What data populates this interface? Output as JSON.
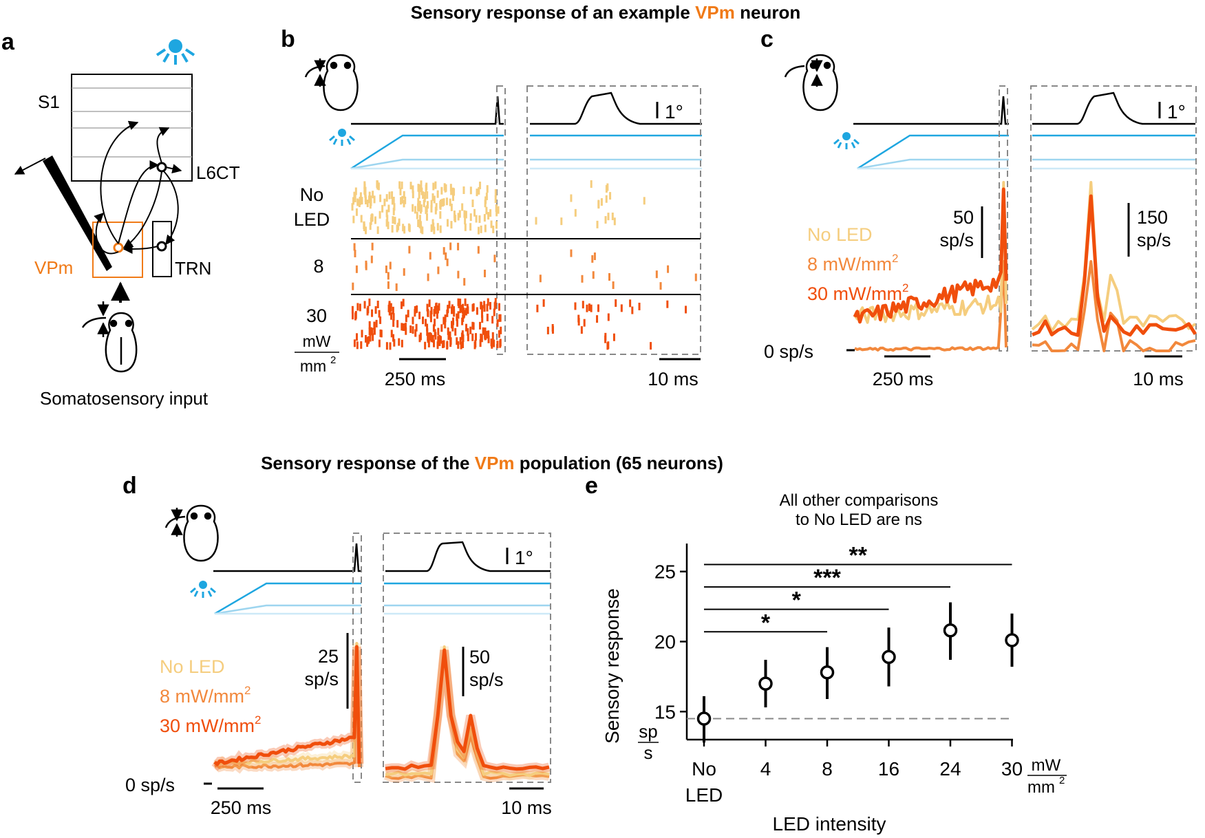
{
  "colors": {
    "noled": "#f5cd7e",
    "mid": "#f2883c",
    "high": "#f04e0c",
    "vpm": "#f07a17",
    "blue": "#1ea6e0",
    "lightblue": "#9dd5ef",
    "faintblue": "#cde9f7",
    "grey": "#888888"
  },
  "titles": {
    "top_prefix": "Sensory response of an example ",
    "top_vpm": "VPm",
    "top_suffix": " neuron",
    "mid_prefix": "Sensory response of the ",
    "mid_vpm": "VPm",
    "mid_suffix": "  population (65 neurons)"
  },
  "panel_labels": {
    "a": "a",
    "b": "b",
    "c": "c",
    "d": "d",
    "e": "e"
  },
  "panel_a": {
    "s1": "S1",
    "l6ct": "L6CT",
    "vpm": "VPm",
    "trn": "TRN",
    "caption": "Somatosensory input"
  },
  "panel_b": {
    "rows": [
      {
        "label_line1": "No",
        "label_line2": "LED"
      },
      {
        "label_line1": "8",
        "label_line2": ""
      },
      {
        "label_line1": "30",
        "label_line2": "mW"
      }
    ],
    "unit_den": "mm",
    "unit_sup": "2",
    "scale_slow": "250 ms",
    "scale_fast": "10 ms",
    "deflection": "1°"
  },
  "panel_c": {
    "legend": [
      "No LED",
      "8 mW/mm",
      "30 mW/mm"
    ],
    "legend_sup": "2",
    "scale_rate_slow_value": "50",
    "scale_rate_slow_unit": "sp/s",
    "scale_rate_fast_value": "150",
    "scale_rate_fast_unit": "sp/s",
    "zero": "0 sp/s",
    "scale_slow": "250 ms",
    "scale_fast": "10 ms",
    "deflection": "1°"
  },
  "panel_d": {
    "legend": [
      "No LED",
      "8 mW/mm",
      "30 mW/mm"
    ],
    "legend_sup": "2",
    "scale_rate_slow_value": "25",
    "scale_rate_slow_unit": "sp/s",
    "scale_rate_fast_value": "50",
    "scale_rate_fast_unit": "sp/s",
    "zero": "0 sp/s",
    "scale_slow": "250 ms",
    "scale_fast": "10 ms",
    "deflection": "1°"
  },
  "chart_data": {
    "type": "scatter",
    "note_line1": "All other comparisons",
    "note_line2": "to No LED are ns",
    "ylabel": "Sensory response",
    "yunit_num": "sp",
    "yunit_den": "s",
    "xlabel": "LED intensity",
    "xunit_num": "mW",
    "xunit_den": "mm",
    "xunit_sup": "2",
    "categories": [
      "No\nLED",
      "4",
      "8",
      "16",
      "24",
      "30"
    ],
    "category_line1": [
      "No",
      "4",
      "8",
      "16",
      "24",
      "30"
    ],
    "category_line2": [
      "LED",
      "",
      "",
      "",
      "",
      ""
    ],
    "values": [
      14.5,
      17.0,
      17.8,
      18.9,
      20.8,
      20.1
    ],
    "err_low": [
      12.8,
      15.3,
      15.9,
      16.8,
      18.7,
      18.2
    ],
    "err_high": [
      16.1,
      18.7,
      19.6,
      21.0,
      22.8,
      22.0
    ],
    "baseline": 14.5,
    "ylim": [
      13,
      27
    ],
    "yticks": [
      15,
      20,
      25
    ],
    "comparisons": [
      {
        "to": 2,
        "y": 20.7,
        "label": "*"
      },
      {
        "to": 3,
        "y": 22.3,
        "label": "*"
      },
      {
        "to": 4,
        "y": 23.9,
        "label": "***"
      },
      {
        "to": 5,
        "y": 25.5,
        "label": "**"
      }
    ]
  }
}
